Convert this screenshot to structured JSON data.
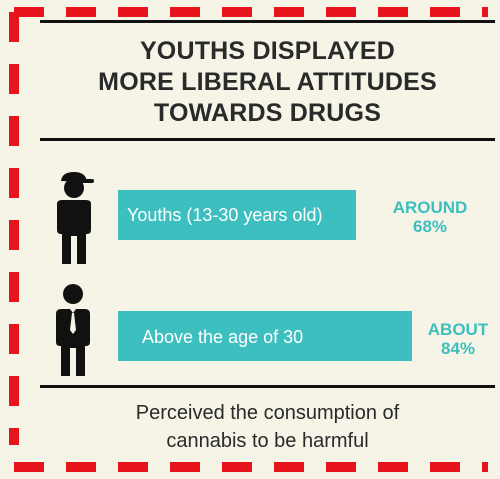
{
  "title": {
    "line1": "YOUTHS DISPLAYED",
    "line2": "MORE LIBERAL ATTITUDES",
    "line3": "TOWARDS DRUGS"
  },
  "chart_data": {
    "type": "bar",
    "orientation": "horizontal",
    "categories": [
      "Youths (13-30 years old)",
      "Above the age of 30"
    ],
    "values": [
      68,
      84
    ],
    "value_labels": [
      {
        "prefix": "AROUND",
        "value": "68%"
      },
      {
        "prefix": "ABOUT",
        "value": "84%"
      }
    ],
    "unit": "%",
    "grid": false,
    "legend": "none"
  },
  "icons": {
    "youth": "young-person-cap-icon",
    "adult": "adult-person-tie-icon"
  },
  "caption": {
    "line1": "Perceived the consumption of",
    "line2": "cannabis to be harmful"
  },
  "colors": {
    "bar": "#3dbfbf",
    "value_text": "#3dbfbf",
    "background": "#f5f4e6",
    "frame_dash": "#e8141b",
    "text": "#2a2a2a"
  }
}
